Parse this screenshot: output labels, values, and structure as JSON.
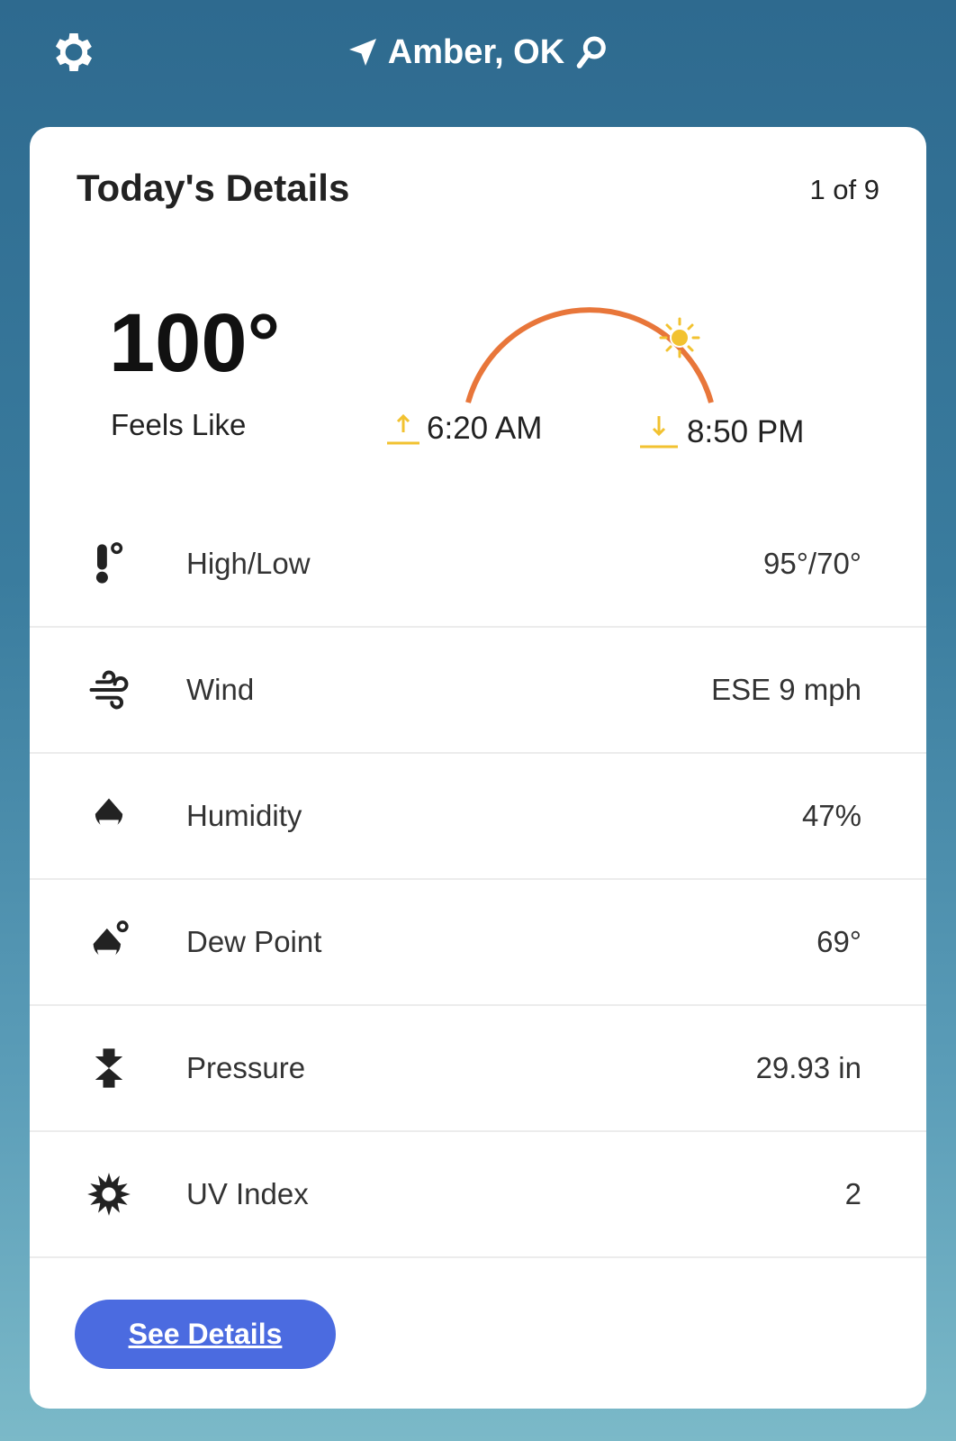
{
  "header": {
    "location": "Amber, OK",
    "settings_icon": "gear-icon",
    "location_icon": "location-arrow-icon",
    "search_icon": "search-icon"
  },
  "card": {
    "title": "Today's Details",
    "pager": "1 of 9",
    "feels_like": {
      "value": "100°",
      "label": "Feels Like"
    },
    "sun": {
      "sunrise": "6:20 AM",
      "sunset": "8:50 PM",
      "arc_color": "#e8763a",
      "sun_color": "#f2c230"
    },
    "rows": [
      {
        "label": "High/Low",
        "value": "95°/70°",
        "icon": "thermometer-icon"
      },
      {
        "label": "Wind",
        "value": "ESE 9 mph",
        "icon": "wind-icon"
      },
      {
        "label": "Humidity",
        "value": "47%",
        "icon": "humidity-drop-icon"
      },
      {
        "label": "Dew Point",
        "value": "69°",
        "icon": "dew-point-icon"
      },
      {
        "label": "Pressure",
        "value": "29.93 in",
        "icon": "pressure-icon"
      },
      {
        "label": "UV Index",
        "value": "2",
        "icon": "uv-sun-icon"
      }
    ],
    "button": "See Details",
    "button_color": "#4b6be0"
  }
}
